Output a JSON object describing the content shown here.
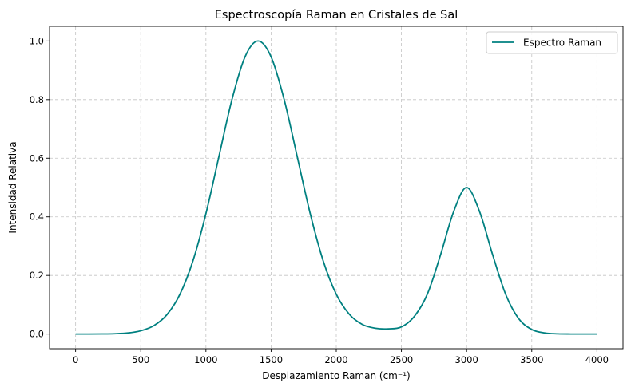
{
  "chart_data": {
    "type": "line",
    "title": "Espectroscopía Raman en Cristales de Sal",
    "xlabel": "Desplazamiento Raman (cm⁻¹)",
    "ylabel": "Intensidad Relativa",
    "xlim": [
      -200,
      4200
    ],
    "ylim": [
      -0.05,
      1.05
    ],
    "xticks": [
      0,
      500,
      1000,
      1500,
      2000,
      2500,
      3000,
      3500,
      4000
    ],
    "yticks": [
      0.0,
      0.2,
      0.4,
      0.6,
      0.8,
      1.0
    ],
    "xtick_labels": [
      "0",
      "500",
      "1000",
      "1500",
      "2000",
      "2500",
      "3000",
      "3500",
      "4000"
    ],
    "ytick_labels": [
      "0.0",
      "0.2",
      "0.4",
      "0.6",
      "0.8",
      "1.0"
    ],
    "grid": true,
    "legend_position": "top-right",
    "series": [
      {
        "name": "Espectro Raman",
        "color": "#008080",
        "x": [
          0,
          100,
          200,
          300,
          400,
          500,
          600,
          700,
          800,
          900,
          1000,
          1100,
          1200,
          1300,
          1400,
          1500,
          1600,
          1700,
          1800,
          1900,
          2000,
          2100,
          2200,
          2300,
          2400,
          2500,
          2600,
          2700,
          2800,
          2900,
          3000,
          3100,
          3200,
          3300,
          3400,
          3500,
          3600,
          3700,
          3800,
          3900,
          4000
        ],
        "y": [
          0.0,
          0.0,
          0.0003,
          0.0011,
          0.0036,
          0.0111,
          0.0286,
          0.0657,
          0.1353,
          0.2494,
          0.4111,
          0.6065,
          0.8007,
          0.946,
          1.0,
          0.946,
          0.8007,
          0.6065,
          0.4111,
          0.2494,
          0.1358,
          0.0676,
          0.0327,
          0.0197,
          0.0178,
          0.0245,
          0.0608,
          0.1375,
          0.2702,
          0.417,
          0.5,
          0.417,
          0.2702,
          0.1353,
          0.0525,
          0.0156,
          0.0037,
          0.0007,
          0.0001,
          0.0,
          0.0
        ]
      }
    ]
  }
}
